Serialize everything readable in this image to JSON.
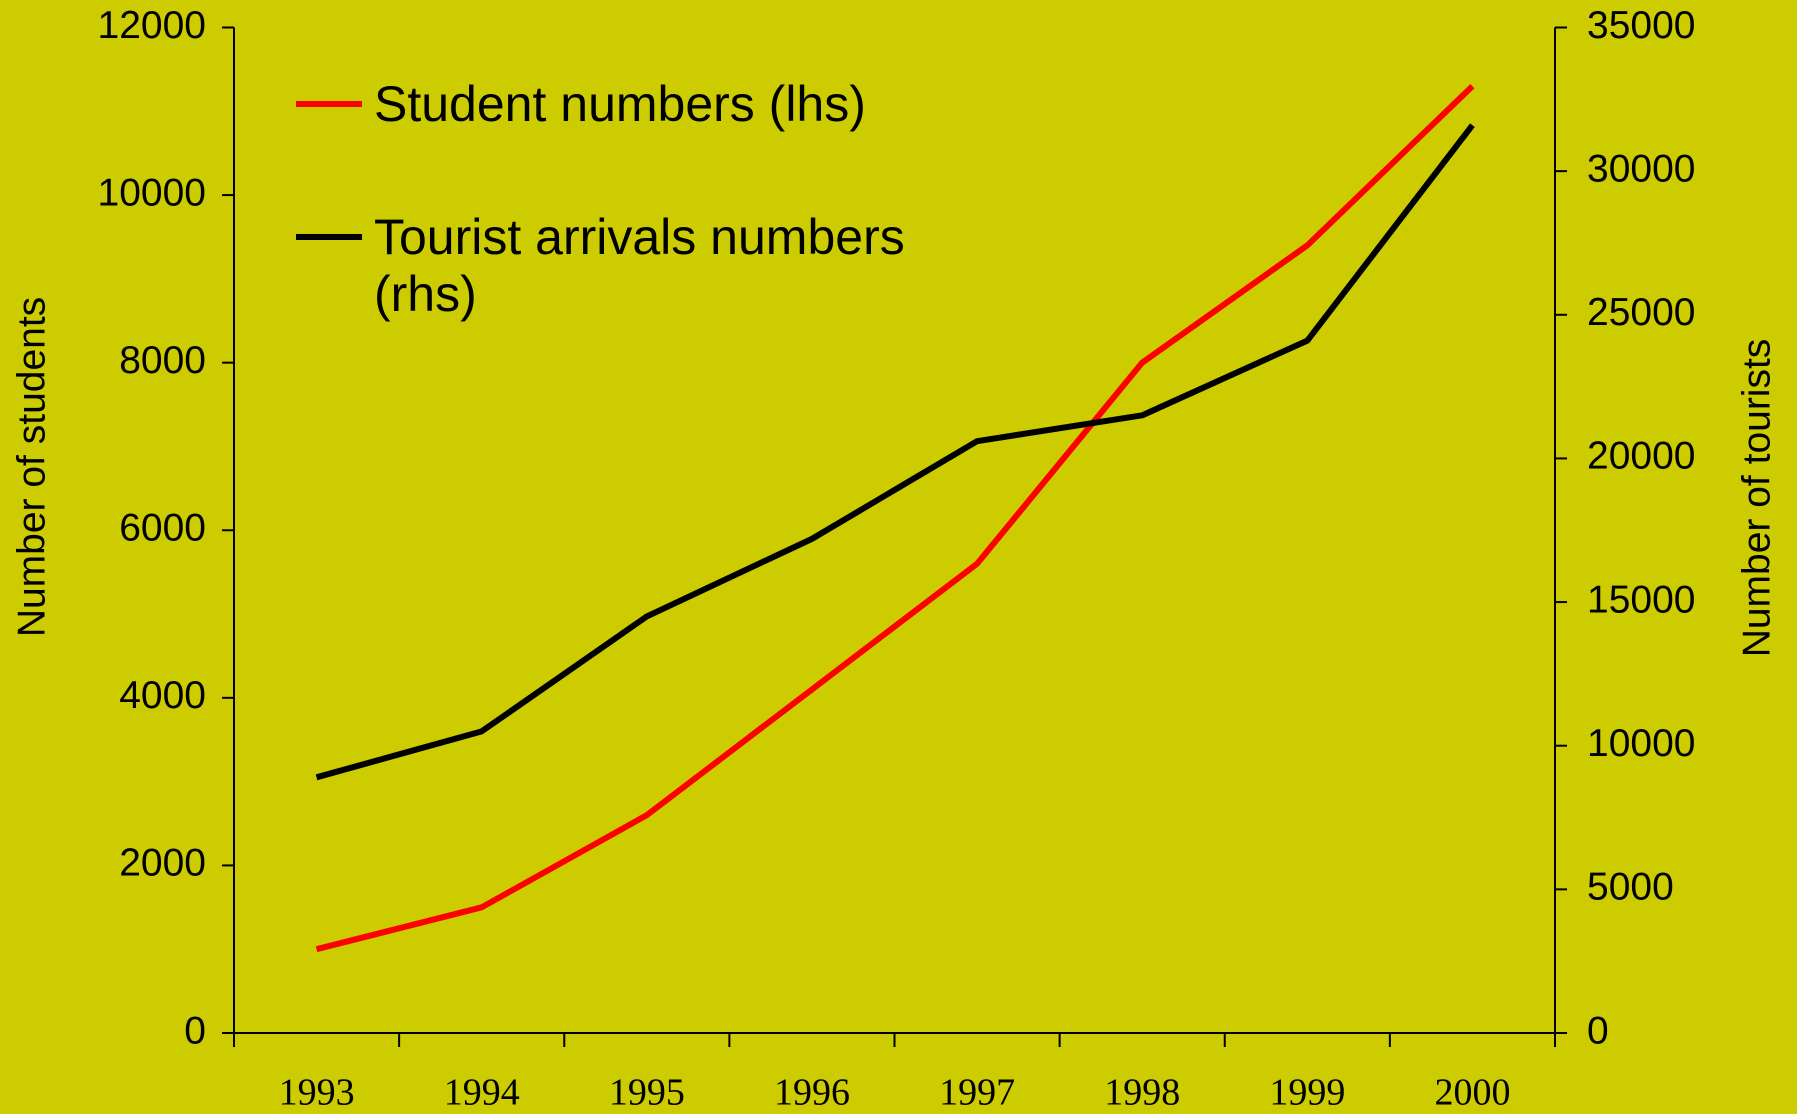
{
  "chart_data": {
    "type": "line",
    "categories": [
      "1993",
      "1994",
      "1995",
      "1996",
      "1997",
      "1998",
      "1999",
      "2000"
    ],
    "series": [
      {
        "name": "Student numbers (lhs)",
        "color": "#ff0000",
        "values": [
          1000,
          1500,
          2600,
          4100,
          5600,
          8000,
          9400,
          11300
        ]
      },
      {
        "name": "Tourist arrivals numbers (rhs)",
        "color": "#000000",
        "axis": "y2",
        "values": [
          8900,
          10500,
          14500,
          17200,
          20600,
          21500,
          24100,
          31600
        ]
      }
    ],
    "ylabel": "Number of students",
    "y2label": "Number of tourists",
    "ylim": [
      0,
      12000
    ],
    "yticks": [
      0,
      2000,
      4000,
      6000,
      8000,
      10000,
      12000
    ],
    "y2lim": [
      0,
      35000
    ],
    "y2ticks": [
      0,
      5000,
      10000,
      15000,
      20000,
      25000,
      30000,
      35000
    ],
    "grid": false,
    "legend": "upper left",
    "background": "#cccc00"
  }
}
